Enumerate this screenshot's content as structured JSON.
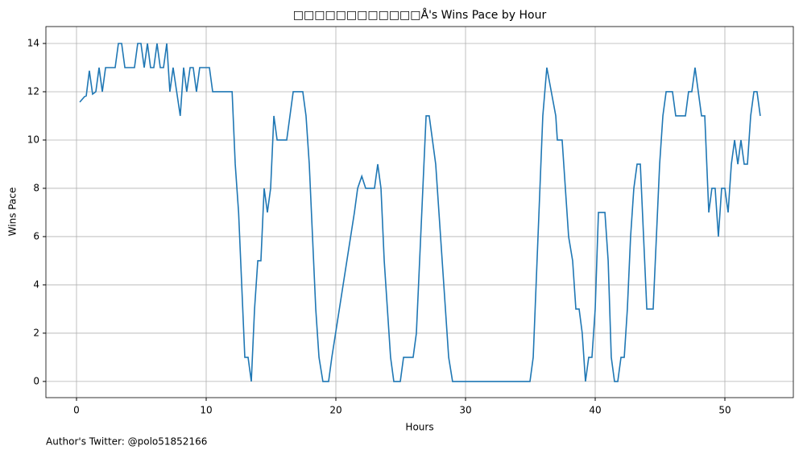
{
  "chart_data": {
    "type": "line",
    "title": "□□□□□□□□□□□□Å's Wins Pace by Hour",
    "xlabel": "Hours",
    "ylabel": "Wins Pace",
    "annotation": "Author's Twitter: @polo51852166",
    "color": "#1f77b4",
    "grid": true,
    "xlim": [
      -2.36,
      55.28
    ],
    "ylim": [
      -0.67,
      14.7
    ],
    "xticks": [
      0,
      10,
      20,
      30,
      40,
      50
    ],
    "yticks": [
      0,
      2,
      4,
      6,
      8,
      10,
      12,
      14
    ],
    "x": [
      0.25,
      0.62,
      0.75,
      0.99,
      1.24,
      1.49,
      1.74,
      1.99,
      2.24,
      2.98,
      3.23,
      3.48,
      3.73,
      4.47,
      4.72,
      4.97,
      5.22,
      5.47,
      5.71,
      5.96,
      6.21,
      6.46,
      6.71,
      6.96,
      7.2,
      7.45,
      8.0,
      8.26,
      8.5,
      8.76,
      9.0,
      9.25,
      9.5,
      10.25,
      10.5,
      12,
      12.24,
      12.5,
      12.98,
      13.23,
      13.48,
      13.73,
      13.98,
      14.22,
      14.47,
      14.72,
      14.97,
      15.22,
      15.47,
      16.21,
      16.71,
      17.45,
      17.7,
      17.95,
      18.45,
      18.7,
      19,
      19.44,
      19.69,
      21.43,
      21.68,
      22,
      22.3,
      22.98,
      23.23,
      23.48,
      23.73,
      24.22,
      24.47,
      24.97,
      25.22,
      25.96,
      26.21,
      26.71,
      26.96,
      27.2,
      27.7,
      28.7,
      29,
      34.97,
      35.22,
      35.96,
      36.27,
      36.96,
      37.08,
      37.45,
      37.95,
      38.26,
      38.51,
      38.76,
      39.0,
      39.25,
      39.5,
      39.75,
      40.0,
      40.25,
      40.75,
      41.0,
      41.24,
      41.49,
      41.74,
      41.99,
      42.24,
      42.48,
      42.73,
      42.98,
      43.23,
      43.48,
      43.98,
      44.47,
      44.97,
      45.22,
      45.47,
      45.96,
      46.21,
      46.96,
      47.2,
      47.45,
      47.7,
      48.2,
      48.45,
      48.76,
      49.0,
      49.25,
      49.5,
      49.75,
      50,
      50.25,
      50.5,
      50.75,
      51.0,
      51.24,
      51.49,
      51.74,
      51.99,
      52.24,
      52.48,
      52.73
    ],
    "values": [
      11.57,
      11.8,
      11.83,
      12.87,
      11.9,
      12,
      13,
      12,
      13,
      13,
      14,
      14,
      13,
      13,
      14,
      14,
      13,
      14,
      13,
      13,
      14,
      13,
      13,
      14,
      12,
      13,
      11,
      13,
      12,
      13,
      13,
      12,
      13,
      13,
      12,
      12,
      9,
      7,
      1,
      1,
      0,
      3,
      5,
      5,
      8,
      7,
      8,
      11,
      10,
      10,
      12,
      12,
      11,
      9,
      3,
      1,
      0,
      0,
      1,
      7,
      8,
      8.5,
      8,
      8,
      9,
      8,
      5,
      1,
      0,
      0,
      1,
      1,
      2,
      8,
      11,
      11,
      9,
      1,
      0,
      0,
      1,
      11,
      13,
      11,
      10,
      10,
      6,
      5,
      3,
      3,
      2,
      0,
      1,
      1,
      3,
      7,
      7,
      5,
      1,
      0,
      0,
      1,
      1,
      3,
      6,
      8,
      9,
      9,
      3,
      3,
      9,
      11,
      12,
      12,
      11,
      11,
      12,
      12,
      13,
      11,
      11,
      7,
      8,
      8,
      6,
      8,
      8,
      7,
      9,
      10,
      9,
      10,
      9,
      9,
      11,
      12,
      12,
      11
    ]
  }
}
